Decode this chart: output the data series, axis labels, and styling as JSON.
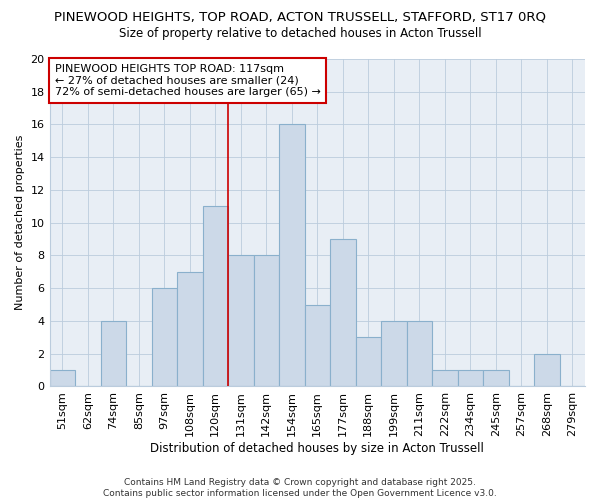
{
  "title1": "PINEWOOD HEIGHTS, TOP ROAD, ACTON TRUSSELL, STAFFORD, ST17 0RQ",
  "title2": "Size of property relative to detached houses in Acton Trussell",
  "xlabel": "Distribution of detached houses by size in Acton Trussell",
  "ylabel": "Number of detached properties",
  "bar_labels": [
    "51sqm",
    "62sqm",
    "74sqm",
    "85sqm",
    "97sqm",
    "108sqm",
    "120sqm",
    "131sqm",
    "142sqm",
    "154sqm",
    "165sqm",
    "177sqm",
    "188sqm",
    "199sqm",
    "211sqm",
    "222sqm",
    "234sqm",
    "245sqm",
    "257sqm",
    "268sqm",
    "279sqm"
  ],
  "bar_values": [
    1,
    0,
    4,
    0,
    6,
    7,
    11,
    8,
    8,
    16,
    5,
    9,
    3,
    4,
    4,
    1,
    1,
    1,
    0,
    2,
    0
  ],
  "bar_color": "#ccd9e8",
  "bar_edge_color": "#8ab0cc",
  "vline_x": 6.5,
  "vline_color": "#cc0000",
  "annotation_text": "PINEWOOD HEIGHTS TOP ROAD: 117sqm\n← 27% of detached houses are smaller (24)\n72% of semi-detached houses are larger (65) →",
  "annotation_box_color": "#ffffff",
  "annotation_box_edge": "#cc0000",
  "ylim": [
    0,
    20
  ],
  "yticks": [
    0,
    2,
    4,
    6,
    8,
    10,
    12,
    14,
    16,
    18,
    20
  ],
  "grid_color": "#bbccdd",
  "plot_bg_color": "#e8eef5",
  "background_color": "#ffffff",
  "footer": "Contains HM Land Registry data © Crown copyright and database right 2025.\nContains public sector information licensed under the Open Government Licence v3.0.",
  "title1_fontsize": 9.5,
  "title2_fontsize": 8.5,
  "xlabel_fontsize": 8.5,
  "ylabel_fontsize": 8.0,
  "tick_fontsize": 8.0,
  "annotation_fontsize": 8.0,
  "footer_fontsize": 6.5
}
